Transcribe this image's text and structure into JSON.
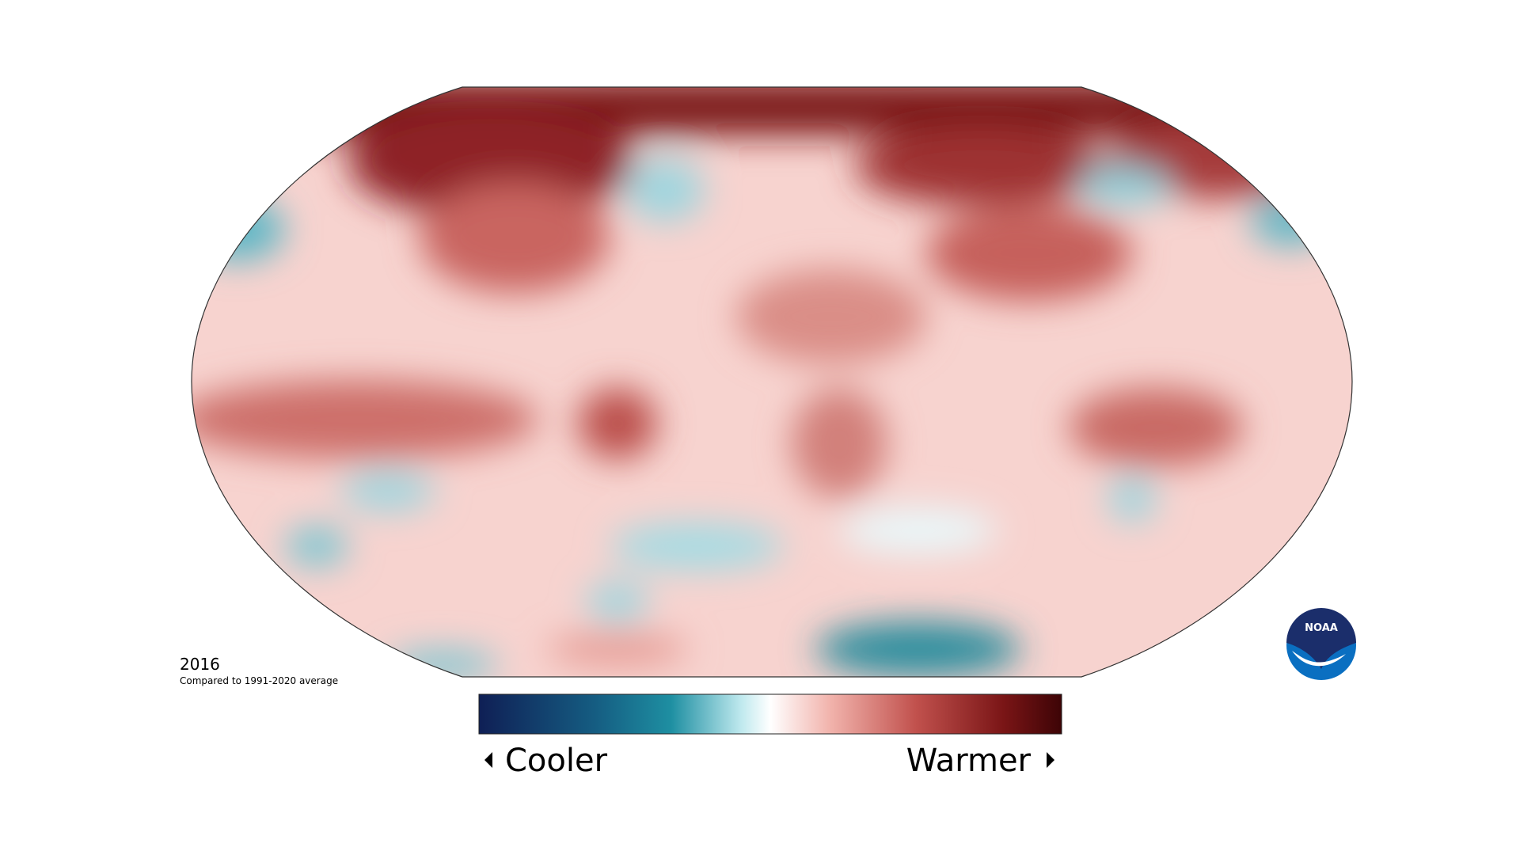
{
  "map": {
    "year": "2016",
    "caption": "Compared to 1991-2020 average",
    "legend": {
      "low_label": "Cooler",
      "high_label": "Warmer"
    },
    "logo": "NOAA"
  }
}
